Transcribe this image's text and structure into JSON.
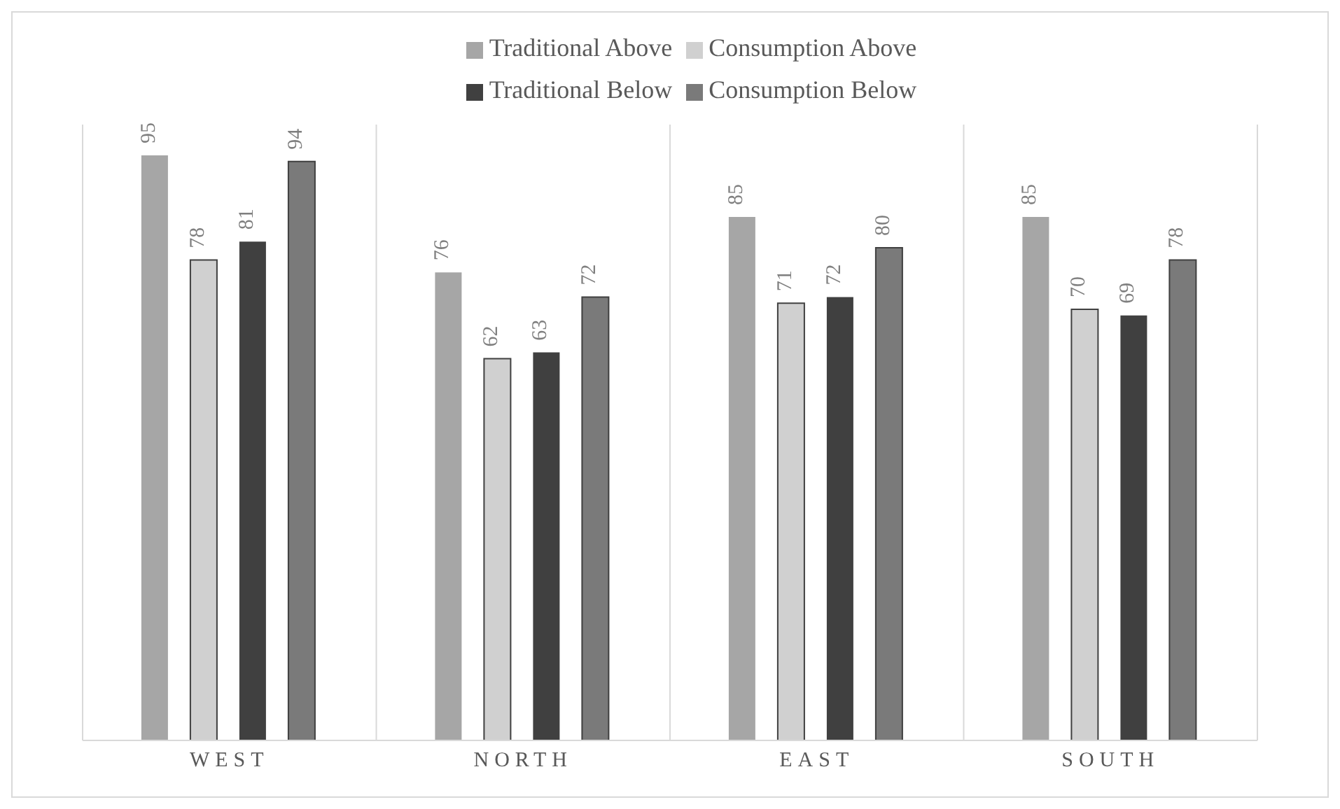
{
  "chart_data": {
    "type": "bar",
    "categories": [
      "WEST",
      "NORTH",
      "EAST",
      "SOUTH"
    ],
    "series": [
      {
        "name": "Traditional Above",
        "color": "#a6a6a6",
        "values": [
          95,
          76,
          85,
          85
        ]
      },
      {
        "name": "Consumption Above",
        "color": "#d0d0d0",
        "values": [
          78,
          62,
          71,
          70
        ]
      },
      {
        "name": "Traditional Below",
        "color": "#404040",
        "values": [
          81,
          63,
          72,
          69
        ]
      },
      {
        "name": "Consumption Below",
        "color": "#7a7a7a",
        "values": [
          94,
          72,
          80,
          78
        ]
      }
    ],
    "ylim": [
      0,
      100
    ],
    "data_labels": true,
    "legend": "top",
    "grid": "x"
  }
}
